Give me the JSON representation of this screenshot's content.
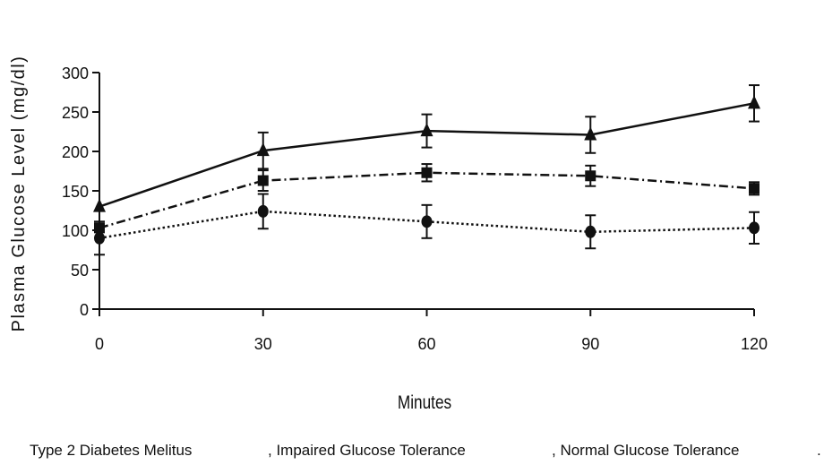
{
  "chart_data": {
    "type": "line",
    "xlabel": "Minutes",
    "ylabel": "Plasma Glucose Level (mg/dl)",
    "x": [
      0,
      30,
      60,
      90,
      120
    ],
    "xticks": [
      "0",
      "30",
      "60",
      "90",
      "120"
    ],
    "yticks": [
      "0",
      "50",
      "100",
      "150",
      "200",
      "250",
      "300"
    ],
    "xlim": [
      0,
      120
    ],
    "ylim": [
      0,
      300
    ],
    "grid": false,
    "series": [
      {
        "name": "Type 2 Diabetes Melitus",
        "marker": "triangle",
        "line_style": "solid",
        "values": [
          130,
          201,
          226,
          221,
          261
        ],
        "error": [
          0,
          23,
          21,
          23,
          23
        ]
      },
      {
        "name": "Impaired Glucose Tolerance",
        "marker": "square",
        "line_style": "dash-dot",
        "values": [
          103,
          163,
          173,
          169,
          153
        ],
        "error": [
          0,
          13,
          11,
          13,
          8
        ]
      },
      {
        "name": "Normal Glucose Tolerance",
        "marker": "circle",
        "line_style": "dotted",
        "values": [
          90,
          124,
          111,
          98,
          103
        ],
        "error": [
          21,
          22,
          21,
          21,
          20
        ]
      }
    ]
  },
  "legend": {
    "item1": "Type 2 Diabetes Melitus",
    "item2": ", Impaired Glucose Tolerance",
    "item3": ", Normal Glucose Tolerance",
    "item4": "."
  }
}
